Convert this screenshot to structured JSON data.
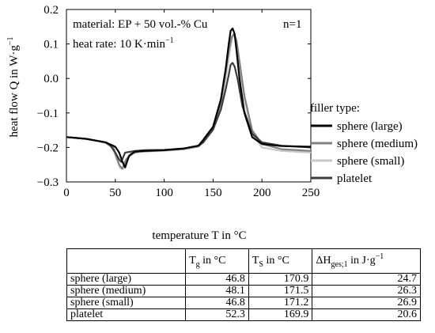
{
  "chart_data": {
    "type": "line",
    "title": "",
    "xlabel": "temperature T in °C",
    "ylabel": "heat flow Q in W·g",
    "ylabel_sup": "−1",
    "xlim": [
      0,
      250
    ],
    "ylim": [
      -0.3,
      0.2
    ],
    "xticks": [
      0,
      50,
      100,
      150,
      200,
      250
    ],
    "yticks": [
      0.2,
      0.1,
      0.0,
      -0.1,
      -0.2,
      -0.3
    ],
    "xtick_labels": [
      "0",
      "50",
      "100",
      "150",
      "200",
      "250"
    ],
    "ytick_labels": [
      "0.2",
      "0.1",
      "0.0",
      "−0.1",
      "−0.2",
      "−0.3"
    ],
    "annotations": {
      "material": "material: EP + 50 vol.-% Cu",
      "heat_rate": "heat rate: 10 K·min",
      "heat_rate_sup": "−1",
      "n": "n=1"
    },
    "legend": {
      "title": "filler type:",
      "placement": "right"
    },
    "series": [
      {
        "name": "sphere (large)",
        "color": "#000000",
        "x": [
          0,
          20,
          40,
          50,
          54,
          57,
          60,
          64,
          70,
          80,
          100,
          120,
          135,
          140,
          150,
          158,
          163,
          166,
          168,
          170,
          172,
          174,
          177,
          182,
          190,
          200,
          220,
          250
        ],
        "y": [
          -0.17,
          -0.175,
          -0.185,
          -0.198,
          -0.215,
          -0.24,
          -0.258,
          -0.225,
          -0.212,
          -0.21,
          -0.208,
          -0.203,
          -0.195,
          -0.178,
          -0.14,
          -0.06,
          0.03,
          0.1,
          0.138,
          0.145,
          0.13,
          0.08,
          0.0,
          -0.1,
          -0.17,
          -0.19,
          -0.196,
          -0.198
        ]
      },
      {
        "name": "sphere (medium)",
        "color": "#808080",
        "x": [
          0,
          20,
          40,
          48,
          51,
          54,
          57,
          61,
          66,
          75,
          100,
          120,
          135,
          140,
          150,
          158,
          163,
          166,
          169,
          171.5,
          174,
          177,
          182,
          190,
          200,
          220,
          250
        ],
        "y": [
          -0.17,
          -0.175,
          -0.185,
          -0.2,
          -0.225,
          -0.25,
          -0.262,
          -0.235,
          -0.218,
          -0.212,
          -0.208,
          -0.205,
          -0.197,
          -0.185,
          -0.145,
          -0.07,
          0.02,
          0.08,
          0.12,
          0.13,
          0.11,
          0.05,
          -0.05,
          -0.15,
          -0.19,
          -0.205,
          -0.21
        ]
      },
      {
        "name": "sphere (small)",
        "color": "#c8c8c8",
        "x": [
          0,
          20,
          40,
          47,
          51,
          55,
          58,
          62,
          70,
          80,
          100,
          120,
          135,
          140,
          150,
          158,
          163,
          166,
          169,
          171,
          173,
          176,
          182,
          190,
          200,
          220,
          250
        ],
        "y": [
          -0.17,
          -0.175,
          -0.187,
          -0.2,
          -0.23,
          -0.26,
          -0.262,
          -0.232,
          -0.215,
          -0.212,
          -0.21,
          -0.205,
          -0.198,
          -0.185,
          -0.15,
          -0.08,
          0.0,
          0.06,
          0.11,
          0.128,
          0.115,
          0.06,
          -0.06,
          -0.16,
          -0.2,
          -0.21,
          -0.215
        ]
      },
      {
        "name": "platelet",
        "color": "#3c3c3c",
        "x": [
          0,
          20,
          40,
          45,
          50,
          54,
          56,
          60,
          70,
          80,
          100,
          120,
          135,
          140,
          150,
          158,
          163,
          166,
          168,
          170,
          172,
          175,
          180,
          190,
          200,
          220,
          250
        ],
        "y": [
          -0.17,
          -0.175,
          -0.185,
          -0.195,
          -0.215,
          -0.235,
          -0.242,
          -0.215,
          -0.21,
          -0.208,
          -0.207,
          -0.203,
          -0.195,
          -0.185,
          -0.148,
          -0.09,
          -0.03,
          0.01,
          0.04,
          0.045,
          0.035,
          0.0,
          -0.08,
          -0.16,
          -0.185,
          -0.195,
          -0.2
        ]
      }
    ]
  },
  "table": {
    "headers": [
      {
        "main": "",
        "sub": "",
        "suffix": "",
        "sup": ""
      },
      {
        "main": "T",
        "sub": "g",
        "suffix": " in °C",
        "sup": ""
      },
      {
        "main": "T",
        "sub": "S",
        "suffix": " in °C",
        "sup": ""
      },
      {
        "main": "ΔH",
        "sub": "ges;1",
        "suffix": " in J·g",
        "sup": "−1"
      }
    ],
    "rows": [
      [
        "sphere (large)",
        "46.8",
        "170.9",
        "24.7"
      ],
      [
        "sphere (medium)",
        "48.1",
        "171.5",
        "26.3"
      ],
      [
        "sphere (small)",
        "46.8",
        "171.2",
        "26.9"
      ],
      [
        "platelet",
        "52.3",
        "169.9",
        "20.6"
      ]
    ]
  }
}
